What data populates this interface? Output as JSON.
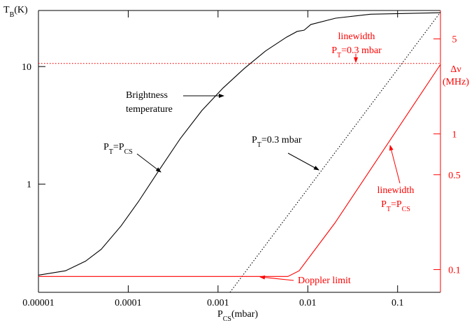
{
  "chart_data": {
    "type": "line",
    "log_x": true,
    "log_y": true,
    "log_y2": true,
    "xlim": [
      1e-05,
      0.3
    ],
    "ylim": [
      0.12,
      30
    ],
    "y2lim": [
      0.068,
      8.1
    ],
    "xticks": [
      1e-05,
      0.0001,
      0.001,
      0.01,
      0.1
    ],
    "yticks": [
      1,
      10
    ],
    "y2ticks": [
      0.1,
      0.5,
      1,
      5
    ],
    "axis_color": "#000000",
    "y2_color": "#ff0000",
    "x_label": [
      "P",
      "CS",
      "(mbar)"
    ],
    "y_label": [
      "T",
      "B",
      "(K)"
    ],
    "y2_label": [
      [
        "Δν"
      ],
      [
        "(MHz)"
      ]
    ],
    "series": [
      {
        "color": "#000000",
        "style": "solid",
        "axis": "y",
        "x": [
          1e-05,
          2e-05,
          3.35e-05,
          5e-05,
          8.3e-05,
          0.00013,
          0.00022,
          0.00038,
          0.00066,
          0.00113,
          0.00195,
          0.00335,
          0.0058,
          0.0076,
          0.0091,
          0.0108,
          0.0204,
          0.05,
          0.3
        ],
        "values": [
          0.168,
          0.183,
          0.221,
          0.279,
          0.44,
          0.71,
          1.31,
          2.44,
          4.22,
          6.54,
          9.6,
          13.5,
          17.8,
          19.9,
          20.4,
          22.8,
          25.8,
          27.9,
          28.7
        ]
      },
      {
        "color": "#000000",
        "style": "dotted",
        "axis": "y",
        "x": [
          0.00136,
          0.3
        ],
        "values": [
          0.12,
          29
        ]
      },
      {
        "color": "#ff0000",
        "style": "solid",
        "axis": "y2",
        "x": [
          1e-05,
          0.006,
          0.008,
          0.02,
          0.3
        ],
        "values": [
          0.089,
          0.089,
          0.098,
          0.22,
          3.24
        ]
      },
      {
        "color": "#ff0000",
        "style": "dotted",
        "axis": "y2",
        "x": [
          1e-05,
          0.3
        ],
        "values": [
          3.3,
          3.3
        ]
      }
    ],
    "annotations": [
      {
        "color": "#000000",
        "lines": [
          [
            "Brightness"
          ],
          [
            "temperature"
          ]
        ]
      },
      {
        "color": "#000000",
        "lines": [
          [
            "P",
            "T",
            "=P",
            "CS"
          ]
        ]
      },
      {
        "color": "#000000",
        "lines": [
          [
            "P",
            "T",
            "=0.3 mbar"
          ]
        ]
      },
      {
        "color": "#ff0000",
        "lines": [
          [
            "linewidth"
          ],
          [
            "P",
            "T",
            "=0.3 mbar"
          ]
        ]
      },
      {
        "color": "#ff0000",
        "lines": [
          [
            "linewidth"
          ],
          [
            "P",
            "T",
            "=P",
            "CS"
          ]
        ]
      },
      {
        "color": "#ff0000",
        "lines": [
          [
            "Doppler limit"
          ]
        ]
      }
    ]
  }
}
